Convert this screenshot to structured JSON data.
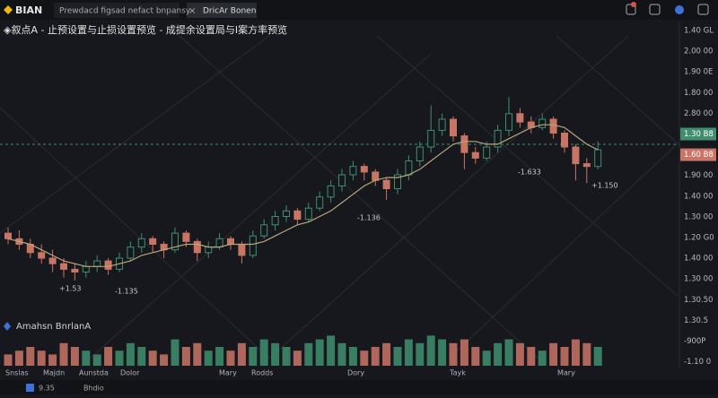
{
  "topbar": {
    "logo": "BIAN",
    "tabs": [
      "Prewdacd figsad nefact bnpansy",
      "DricAr Bonen"
    ],
    "close": "×"
  },
  "title": "◈叙点A - 止预设置与止损设置预览 - 成提余设置局与I案方率预览",
  "legend": "Amahsn BnrlanA",
  "price_axis_labels": [
    "1.40 GL",
    "2.00 00",
    "1.90 0E",
    "1.80 00",
    "2.80 00",
    "1.30 B8",
    "1.60 B8",
    "1.90 00",
    "1.40 00",
    "1.30 00",
    "1.20 G0",
    "1.40 00",
    "1.30 00",
    "1.30.50",
    "1.30.5",
    "-900P",
    "-1.10 0"
  ],
  "time_labels": [
    "Snslas",
    "Majdn",
    "Aunstda",
    "Dolor",
    "Mary",
    "Rodds",
    "Dory",
    "Tayk",
    "Mary"
  ],
  "status": {
    "left": "9.35",
    "mid": "Bhdio"
  },
  "chart_data": {
    "type": "candlestick",
    "ylim": [
      0,
      100
    ],
    "volume_lim": [
      0,
      10
    ],
    "up_color": "#3f8f6f",
    "down_color": "#c97565",
    "ma_color": "#b9a77a",
    "candles": [
      [
        29,
        31,
        25,
        27
      ],
      [
        27,
        30,
        23,
        25
      ],
      [
        25,
        27,
        20,
        22
      ],
      [
        22,
        25,
        18,
        20
      ],
      [
        20,
        23,
        15,
        18
      ],
      [
        18,
        20,
        13,
        16
      ],
      [
        16,
        18,
        12,
        15
      ],
      [
        15,
        19,
        13,
        17
      ],
      [
        17,
        21,
        15,
        19
      ],
      [
        19,
        20,
        14,
        16
      ],
      [
        16,
        22,
        15,
        20
      ],
      [
        20,
        26,
        19,
        24
      ],
      [
        24,
        29,
        22,
        27
      ],
      [
        27,
        28,
        22,
        25
      ],
      [
        25,
        26,
        20,
        23
      ],
      [
        23,
        31,
        22,
        29
      ],
      [
        29,
        30,
        24,
        26
      ],
      [
        26,
        27,
        19,
        22
      ],
      [
        22,
        26,
        20,
        24
      ],
      [
        24,
        29,
        23,
        27
      ],
      [
        27,
        28,
        23,
        25
      ],
      [
        25,
        26,
        18,
        21
      ],
      [
        21,
        30,
        20,
        28
      ],
      [
        28,
        34,
        27,
        32
      ],
      [
        32,
        37,
        30,
        35
      ],
      [
        35,
        39,
        33,
        37
      ],
      [
        37,
        38,
        32,
        34
      ],
      [
        34,
        40,
        33,
        38
      ],
      [
        38,
        44,
        37,
        42
      ],
      [
        42,
        48,
        40,
        46
      ],
      [
        46,
        52,
        44,
        50
      ],
      [
        50,
        55,
        48,
        53
      ],
      [
        53,
        54,
        48,
        51
      ],
      [
        51,
        52,
        46,
        48
      ],
      [
        48,
        49,
        41,
        45
      ],
      [
        45,
        52,
        43,
        50
      ],
      [
        50,
        57,
        48,
        55
      ],
      [
        55,
        62,
        53,
        60
      ],
      [
        60,
        75,
        58,
        66
      ],
      [
        66,
        72,
        64,
        70
      ],
      [
        70,
        71,
        62,
        64
      ],
      [
        64,
        65,
        52,
        58
      ],
      [
        58,
        60,
        54,
        56
      ],
      [
        56,
        62,
        55,
        60
      ],
      [
        60,
        68,
        58,
        66
      ],
      [
        66,
        78,
        64,
        72
      ],
      [
        72,
        74,
        67,
        69
      ],
      [
        69,
        71,
        65,
        67
      ],
      [
        67,
        72,
        66,
        70
      ],
      [
        70,
        71,
        63,
        65
      ],
      [
        65,
        66,
        58,
        60
      ],
      [
        60,
        61,
        48,
        54
      ],
      [
        54,
        56,
        47,
        53
      ],
      [
        53,
        62,
        52,
        59
      ]
    ],
    "volumes": [
      3,
      4,
      5,
      4,
      3,
      6,
      5,
      4,
      3,
      5,
      4,
      6,
      5,
      4,
      3,
      7,
      5,
      6,
      4,
      5,
      4,
      6,
      5,
      7,
      6,
      5,
      4,
      6,
      7,
      8,
      6,
      5,
      4,
      5,
      6,
      5,
      7,
      6,
      8,
      7,
      6,
      7,
      5,
      4,
      6,
      7,
      6,
      5,
      4,
      6,
      5,
      7,
      6,
      5
    ],
    "ma": [
      27,
      26,
      25,
      23,
      21,
      19,
      18,
      17,
      17,
      17,
      18,
      19,
      21,
      22,
      23,
      24,
      25,
      25,
      24,
      24,
      25,
      25,
      25,
      26,
      28,
      30,
      32,
      33,
      35,
      37,
      40,
      43,
      46,
      48,
      49,
      49,
      50,
      52,
      55,
      58,
      61,
      62,
      62,
      61,
      61,
      63,
      65,
      67,
      68,
      68,
      67,
      64,
      61,
      59
    ],
    "annotations": [
      "+1.53",
      "-1.135",
      "-1.136",
      "-1.633",
      "+1.150"
    ]
  }
}
